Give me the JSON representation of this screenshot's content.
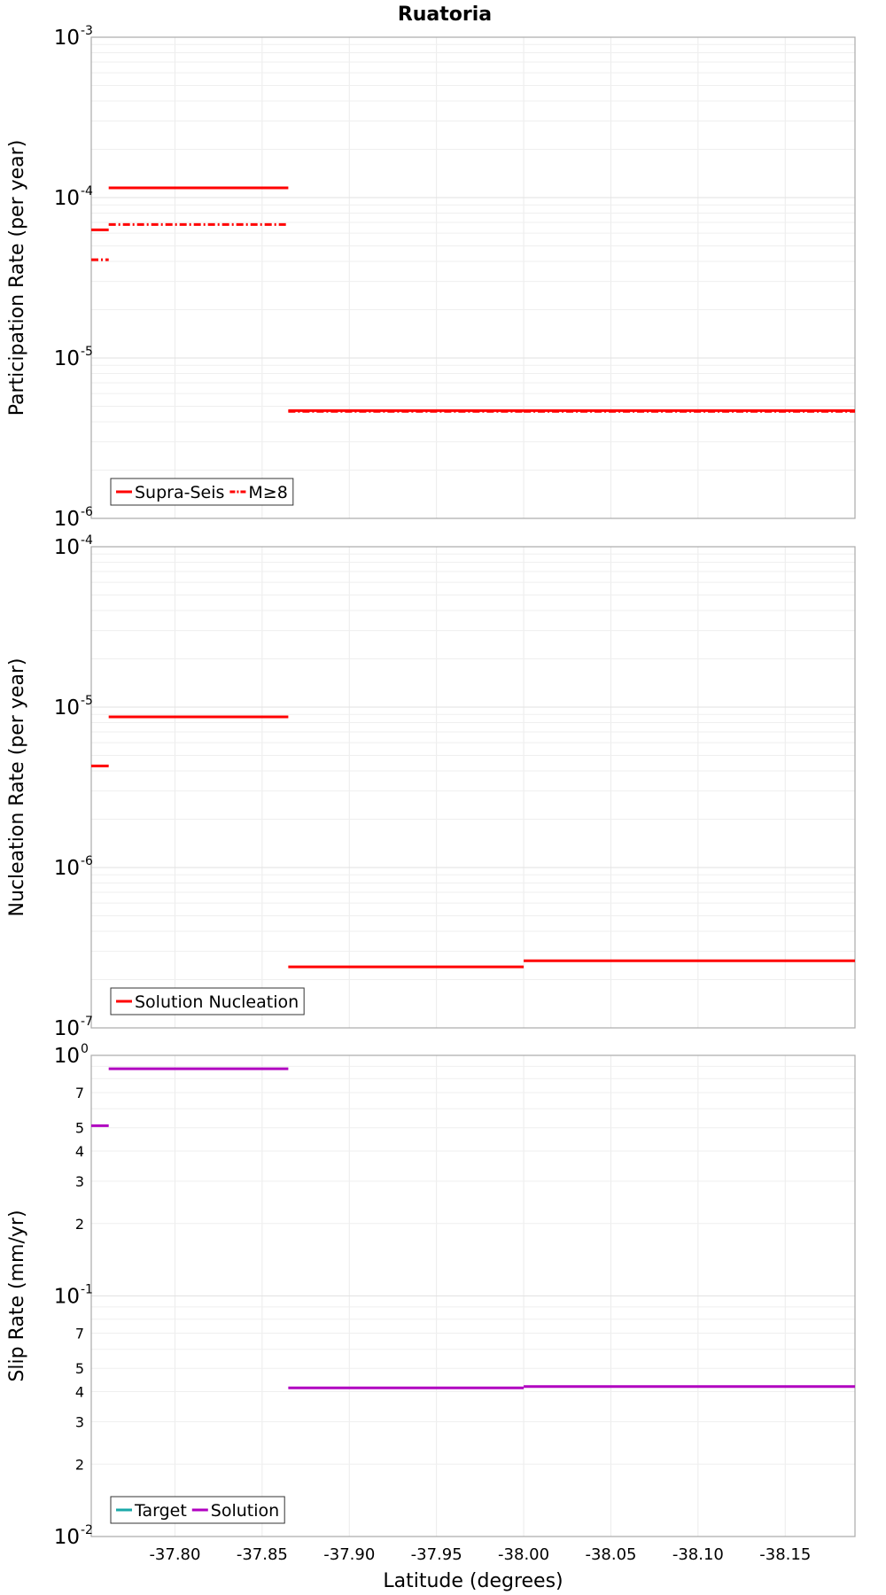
{
  "figure_title": "Ruatoria",
  "xlabel": "Latitude (degrees)",
  "x_ticks": [
    "-37.80",
    "-37.85",
    "-37.90",
    "-37.95",
    "-38.00",
    "-38.05",
    "-38.10",
    "-38.15"
  ],
  "chart_data": [
    {
      "type": "line",
      "title": "Ruatoria",
      "xlabel": "Latitude (degrees)",
      "ylabel": "Participation Rate (per year)",
      "yscale": "log",
      "xlim": [
        -37.752,
        -38.19
      ],
      "ylim": [
        1e-06,
        0.001
      ],
      "y_major_ticks": [
        {
          "base": "10",
          "exp": "-6",
          "value": 1e-06
        },
        {
          "base": "10",
          "exp": "-5",
          "value": 1e-05
        },
        {
          "base": "10",
          "exp": "-4",
          "value": 0.0001
        },
        {
          "base": "10",
          "exp": "-3",
          "value": 0.001
        }
      ],
      "legend": [
        {
          "label": "Supra-Seis",
          "color": "#ff0000",
          "style": "solid"
        },
        {
          "label": "M≥8",
          "color": "#ff0000",
          "style": "dashdot"
        }
      ],
      "legend_position": "bottom-left",
      "series": [
        {
          "name": "Supra-Seis",
          "color": "#ff0000",
          "style": "solid",
          "segments": [
            {
              "x0": -37.752,
              "x1": -37.762,
              "y": 6.3e-05
            },
            {
              "x0": -37.762,
              "x1": -37.865,
              "y": 0.000115
            },
            {
              "x0": -37.865,
              "x1": -38.0,
              "y": 4.7e-06
            },
            {
              "x0": -38.0,
              "x1": -38.19,
              "y": 4.7e-06
            }
          ]
        },
        {
          "name": "M≥8",
          "color": "#ff0000",
          "style": "dashdot",
          "segments": [
            {
              "x0": -37.752,
              "x1": -37.762,
              "y": 4.1e-05
            },
            {
              "x0": -37.762,
              "x1": -37.865,
              "y": 6.8e-05
            },
            {
              "x0": -37.865,
              "x1": -38.0,
              "y": 4.65e-06
            },
            {
              "x0": -38.0,
              "x1": -38.19,
              "y": 4.65e-06
            }
          ]
        }
      ]
    },
    {
      "type": "line",
      "title": "",
      "xlabel": "Latitude (degrees)",
      "ylabel": "Nucleation Rate (per year)",
      "yscale": "log",
      "xlim": [
        -37.752,
        -38.19
      ],
      "ylim": [
        1e-07,
        0.0001
      ],
      "y_major_ticks": [
        {
          "base": "10",
          "exp": "-7",
          "value": 1e-07
        },
        {
          "base": "10",
          "exp": "-6",
          "value": 1e-06
        },
        {
          "base": "10",
          "exp": "-5",
          "value": 1e-05
        },
        {
          "base": "10",
          "exp": "-4",
          "value": 0.0001
        }
      ],
      "legend": [
        {
          "label": "Solution Nucleation",
          "color": "#ff0000",
          "style": "solid"
        }
      ],
      "legend_position": "bottom-left",
      "series": [
        {
          "name": "Solution Nucleation",
          "color": "#ff0000",
          "style": "solid",
          "segments": [
            {
              "x0": -37.752,
              "x1": -37.762,
              "y": 4.3e-06
            },
            {
              "x0": -37.762,
              "x1": -37.865,
              "y": 8.7e-06
            },
            {
              "x0": -37.865,
              "x1": -38.0,
              "y": 2.4e-07
            },
            {
              "x0": -38.0,
              "x1": -38.19,
              "y": 2.62e-07
            }
          ]
        }
      ]
    },
    {
      "type": "line",
      "title": "",
      "xlabel": "Latitude (degrees)",
      "ylabel": "Slip Rate (mm/yr)",
      "yscale": "log",
      "xlim": [
        -37.752,
        -38.19
      ],
      "ylim": [
        0.01,
        1.0
      ],
      "y_major_ticks": [
        {
          "base": "10",
          "exp": "-2",
          "value": 0.01
        },
        {
          "base": "10",
          "exp": "-1",
          "value": 0.1
        },
        {
          "base": "10",
          "exp": "0",
          "value": 1.0
        }
      ],
      "y_minor_labels": [
        {
          "label": "2",
          "value": 0.02
        },
        {
          "label": "3",
          "value": 0.03
        },
        {
          "label": "4",
          "value": 0.04
        },
        {
          "label": "5",
          "value": 0.05
        },
        {
          "label": "7",
          "value": 0.07
        },
        {
          "label": "2",
          "value": 0.2
        },
        {
          "label": "3",
          "value": 0.3
        },
        {
          "label": "4",
          "value": 0.4
        },
        {
          "label": "5",
          "value": 0.5
        },
        {
          "label": "7",
          "value": 0.7
        }
      ],
      "legend": [
        {
          "label": "Target",
          "color": "#1aa8a8",
          "style": "solid"
        },
        {
          "label": "Solution",
          "color": "#b000c0",
          "style": "solid"
        }
      ],
      "legend_position": "bottom-left",
      "series": [
        {
          "name": "Solution",
          "color": "#b000c0",
          "style": "solid",
          "segments": [
            {
              "x0": -37.752,
              "x1": -37.762,
              "y": 0.51
            },
            {
              "x0": -37.762,
              "x1": -37.865,
              "y": 0.88
            },
            {
              "x0": -37.865,
              "x1": -38.0,
              "y": 0.0415
            },
            {
              "x0": -38.0,
              "x1": -38.19,
              "y": 0.042
            }
          ]
        }
      ]
    }
  ]
}
